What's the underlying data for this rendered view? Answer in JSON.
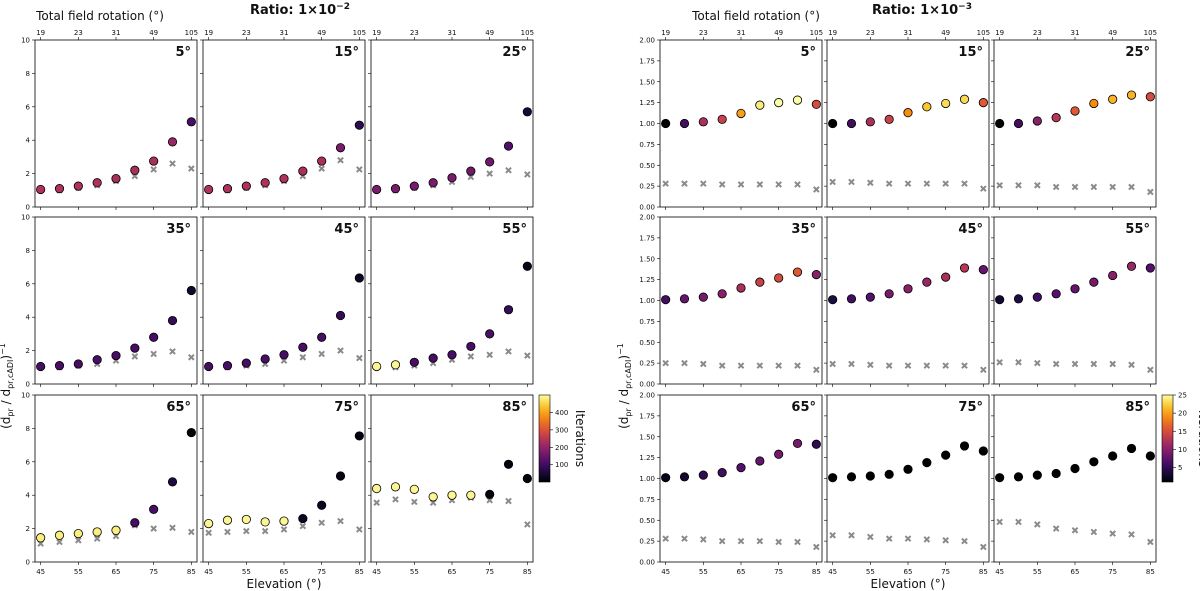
{
  "chart_data": [
    {
      "type": "scatter",
      "title": "Ratio: 1×10",
      "title_exponent": "−2",
      "top_axis_label": "Total field rotation (°)",
      "top_ticks": [
        "19",
        "23",
        "31",
        "49",
        "105"
      ],
      "xlabel": "Elevation (°)",
      "ylabel": "(d",
      "ylabel_sub1": "pr",
      "ylabel_mid": " / d",
      "ylabel_sub2": "pr,cADI",
      "ylabel_end": ")",
      "ylabel_exp": "−1",
      "x": [
        45,
        50,
        55,
        60,
        65,
        70,
        75,
        80,
        85
      ],
      "x_ticks": [
        "45",
        "55",
        "65",
        "75",
        "85"
      ],
      "ylim": [
        0,
        10
      ],
      "y_ticks": [
        "0",
        "2",
        "4",
        "6",
        "8",
        "10"
      ],
      "colorbar": {
        "label": "Iterations",
        "min": 1,
        "max": 500,
        "ticks": [
          "100",
          "200",
          "300",
          "400"
        ],
        "tick_values": [
          100,
          200,
          300,
          400
        ]
      },
      "panels": [
        {
          "label": "5°",
          "dots": [
            1.05,
            1.1,
            1.25,
            1.45,
            1.7,
            2.2,
            2.75,
            3.9,
            5.1
          ],
          "iters": [
            240,
            240,
            240,
            240,
            230,
            230,
            230,
            210,
            110
          ],
          "crosses": [
            1.0,
            1.0,
            1.15,
            1.3,
            1.55,
            1.85,
            2.25,
            2.6,
            2.3
          ]
        },
        {
          "label": "15°",
          "dots": [
            1.05,
            1.1,
            1.25,
            1.45,
            1.7,
            2.15,
            2.75,
            3.55,
            4.9
          ],
          "iters": [
            240,
            240,
            240,
            240,
            240,
            230,
            230,
            170,
            80
          ],
          "crosses": [
            1.0,
            1.0,
            1.15,
            1.3,
            1.55,
            1.85,
            2.3,
            2.8,
            2.25
          ]
        },
        {
          "label": "25°",
          "dots": [
            1.05,
            1.1,
            1.25,
            1.45,
            1.75,
            2.15,
            2.7,
            3.65,
            5.7
          ],
          "iters": [
            170,
            170,
            170,
            170,
            170,
            160,
            160,
            120,
            50
          ],
          "crosses": [
            1.0,
            1.0,
            1.15,
            1.3,
            1.5,
            1.8,
            2.0,
            2.2,
            1.95
          ]
        },
        {
          "label": "35°",
          "dots": [
            1.05,
            1.1,
            1.2,
            1.45,
            1.7,
            2.15,
            2.8,
            3.8,
            5.6
          ],
          "iters": [
            110,
            110,
            110,
            110,
            110,
            110,
            110,
            90,
            40
          ],
          "crosses": [
            1.0,
            1.0,
            1.1,
            1.2,
            1.4,
            1.65,
            1.8,
            1.95,
            1.6
          ]
        },
        {
          "label": "45°",
          "dots": [
            1.05,
            1.1,
            1.25,
            1.5,
            1.75,
            2.2,
            2.8,
            4.1,
            6.35
          ],
          "iters": [
            110,
            110,
            110,
            110,
            110,
            110,
            110,
            90,
            30
          ],
          "crosses": [
            1.0,
            1.0,
            1.1,
            1.2,
            1.4,
            1.6,
            1.8,
            2.0,
            1.55
          ]
        },
        {
          "label": "55°",
          "dots": [
            1.05,
            1.15,
            1.3,
            1.55,
            1.75,
            2.25,
            3.0,
            4.45,
            7.05
          ],
          "iters": [
            490,
            490,
            110,
            110,
            110,
            110,
            110,
            90,
            20
          ],
          "crosses": [
            1.0,
            1.0,
            1.1,
            1.25,
            1.45,
            1.65,
            1.75,
            1.95,
            1.7
          ]
        },
        {
          "label": "65°",
          "dots": [
            1.45,
            1.6,
            1.7,
            1.8,
            1.9,
            2.35,
            3.15,
            4.8,
            7.75
          ],
          "iters": [
            480,
            480,
            480,
            480,
            480,
            110,
            110,
            60,
            10
          ],
          "crosses": [
            1.1,
            1.2,
            1.3,
            1.4,
            1.55,
            2.2,
            2.0,
            2.05,
            1.8
          ]
        },
        {
          "label": "75°",
          "dots": [
            2.3,
            2.5,
            2.55,
            2.4,
            2.45,
            2.6,
            3.4,
            5.15,
            7.55
          ],
          "iters": [
            490,
            490,
            490,
            490,
            490,
            30,
            30,
            20,
            10
          ],
          "crosses": [
            1.75,
            1.8,
            1.85,
            1.85,
            1.95,
            2.15,
            2.35,
            2.45,
            1.95
          ]
        },
        {
          "label": "85°",
          "dots": [
            4.4,
            4.5,
            4.35,
            3.9,
            4.0,
            4.0,
            4.05,
            5.85,
            5.0
          ],
          "iters": [
            490,
            490,
            490,
            490,
            490,
            490,
            10,
            10,
            10
          ],
          "crosses": [
            3.55,
            3.75,
            3.6,
            3.55,
            3.7,
            3.85,
            3.7,
            3.65,
            2.25
          ]
        }
      ]
    },
    {
      "type": "scatter",
      "title": "Ratio: 1×10",
      "title_exponent": "−3",
      "top_axis_label": "Total field rotation (°)",
      "top_ticks": [
        "19",
        "23",
        "31",
        "49",
        "105"
      ],
      "xlabel": "Elevation (°)",
      "ylabel": "(d",
      "ylabel_sub1": "pr",
      "ylabel_mid": " / d",
      "ylabel_sub2": "pr,cADI",
      "ylabel_end": ")",
      "ylabel_exp": "−1",
      "x": [
        45,
        50,
        55,
        60,
        65,
        70,
        75,
        80,
        85
      ],
      "x_ticks": [
        "45",
        "55",
        "65",
        "75",
        "85"
      ],
      "ylim": [
        0,
        2
      ],
      "y_ticks": [
        "0.00",
        "0.25",
        "0.50",
        "0.75",
        "1.00",
        "1.25",
        "1.50",
        "1.75",
        "2.00"
      ],
      "colorbar": {
        "label": "Iterations",
        "min": 1,
        "max": 25,
        "ticks": [
          "5",
          "10",
          "15",
          "20",
          "25"
        ],
        "tick_values": [
          5,
          10,
          15,
          20,
          25
        ]
      },
      "panels": [
        {
          "label": "5°",
          "dots": [
            1.0,
            1.0,
            1.02,
            1.05,
            1.12,
            1.22,
            1.25,
            1.28,
            1.23
          ],
          "iters": [
            1,
            6,
            12,
            14,
            20,
            24,
            25,
            25,
            15
          ],
          "crosses": [
            0.28,
            0.28,
            0.28,
            0.27,
            0.27,
            0.27,
            0.27,
            0.27,
            0.21
          ]
        },
        {
          "label": "15°",
          "dots": [
            1.0,
            1.0,
            1.02,
            1.05,
            1.13,
            1.2,
            1.24,
            1.29,
            1.25
          ],
          "iters": [
            1,
            6,
            12,
            14,
            19,
            22,
            23,
            23,
            16
          ],
          "crosses": [
            0.3,
            0.3,
            0.29,
            0.28,
            0.28,
            0.28,
            0.28,
            0.28,
            0.22
          ]
        },
        {
          "label": "25°",
          "dots": [
            1.0,
            1.0,
            1.03,
            1.07,
            1.15,
            1.24,
            1.29,
            1.34,
            1.32
          ],
          "iters": [
            1,
            6,
            10,
            13,
            16,
            19,
            21,
            21,
            15
          ],
          "crosses": [
            0.26,
            0.26,
            0.26,
            0.24,
            0.24,
            0.24,
            0.24,
            0.24,
            0.18
          ]
        },
        {
          "label": "35°",
          "dots": [
            1.01,
            1.02,
            1.04,
            1.08,
            1.15,
            1.22,
            1.27,
            1.34,
            1.31
          ],
          "iters": [
            6,
            8,
            9,
            10,
            12,
            14,
            15,
            16,
            10
          ],
          "crosses": [
            0.25,
            0.25,
            0.24,
            0.22,
            0.22,
            0.22,
            0.22,
            0.22,
            0.17
          ]
        },
        {
          "label": "45°",
          "dots": [
            1.01,
            1.02,
            1.04,
            1.08,
            1.14,
            1.22,
            1.28,
            1.39,
            1.37
          ],
          "iters": [
            4,
            6,
            7,
            9,
            10,
            11,
            12,
            13,
            8
          ],
          "crosses": [
            0.24,
            0.24,
            0.23,
            0.22,
            0.22,
            0.22,
            0.22,
            0.22,
            0.17
          ]
        },
        {
          "label": "55°",
          "dots": [
            1.01,
            1.02,
            1.04,
            1.08,
            1.14,
            1.22,
            1.3,
            1.41,
            1.39
          ],
          "iters": [
            3,
            4,
            6,
            7,
            8,
            9,
            10,
            11,
            7
          ],
          "crosses": [
            0.26,
            0.26,
            0.25,
            0.24,
            0.24,
            0.24,
            0.24,
            0.23,
            0.17
          ]
        },
        {
          "label": "65°",
          "dots": [
            1.01,
            1.02,
            1.04,
            1.07,
            1.13,
            1.21,
            1.29,
            1.42,
            1.41
          ],
          "iters": [
            2,
            3,
            5,
            6,
            7,
            8,
            9,
            9,
            5
          ],
          "crosses": [
            0.28,
            0.28,
            0.27,
            0.25,
            0.25,
            0.25,
            0.24,
            0.24,
            0.18
          ]
        },
        {
          "label": "75°",
          "dots": [
            1.01,
            1.02,
            1.03,
            1.05,
            1.11,
            1.19,
            1.28,
            1.39,
            1.33
          ],
          "iters": [
            1,
            1,
            1,
            1,
            1,
            1,
            1,
            1,
            1
          ],
          "crosses": [
            0.32,
            0.32,
            0.3,
            0.28,
            0.28,
            0.27,
            0.26,
            0.25,
            0.18
          ]
        },
        {
          "label": "85°",
          "dots": [
            1.01,
            1.02,
            1.04,
            1.06,
            1.12,
            1.2,
            1.27,
            1.36,
            1.27
          ],
          "iters": [
            1,
            1,
            1,
            1,
            1,
            1,
            1,
            1,
            1
          ],
          "crosses": [
            0.48,
            0.48,
            0.45,
            0.4,
            0.38,
            0.36,
            0.34,
            0.33,
            0.24
          ]
        }
      ]
    }
  ]
}
